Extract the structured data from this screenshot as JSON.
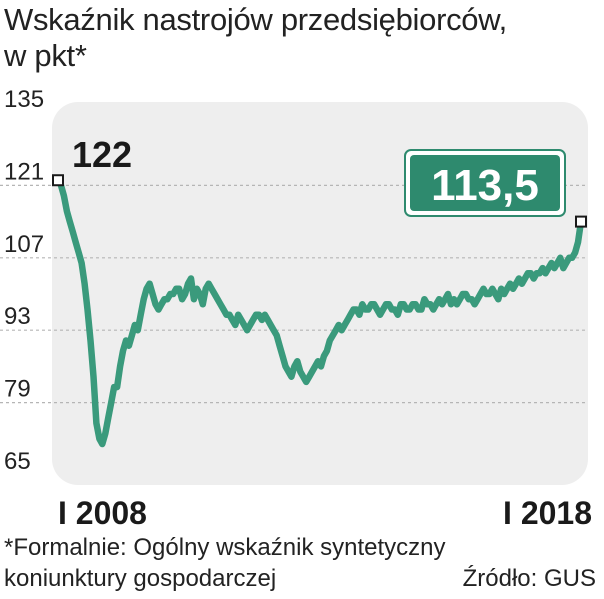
{
  "title_line1": "Wskaźnik nastrojów przedsiębiorców,",
  "title_line2": "w pkt*",
  "footnote_line1": "*Formalnie: Ogólny wskaźnik syntetyczny",
  "footnote_line2": "koniunktury gospodarczej",
  "source": "Źródło: GUS",
  "colors": {
    "line": "#3a9a7c",
    "label_box": "#2e8a6e",
    "plot_bg": "#eeeeee",
    "grid": "#b5b5b5"
  },
  "chart_data": {
    "type": "line",
    "title": "Wskaźnik nastrojów przedsiębiorców, w pkt*",
    "xlabel": "",
    "ylabel": "",
    "ylim": [
      65,
      135
    ],
    "yticks": [
      135,
      121,
      107,
      93,
      79,
      65
    ],
    "xtick_labels": [
      "I 2008",
      "I 2018"
    ],
    "x_range": [
      "I 2008",
      "I 2018"
    ],
    "grid": true,
    "annotations": {
      "start": "122",
      "end": "113,5"
    },
    "series": [
      {
        "values": [
          122,
          121,
          119,
          116,
          114,
          112,
          110,
          108,
          106,
          102,
          97,
          91,
          84,
          75,
          72,
          71,
          73,
          76,
          79,
          82,
          82,
          86,
          89,
          91,
          90,
          92,
          94,
          93,
          96,
          99,
          101,
          102,
          100,
          98,
          97,
          98,
          99,
          99,
          100,
          100,
          101,
          101,
          99,
          100,
          102,
          103,
          99,
          101,
          100,
          98,
          101,
          102,
          101,
          100,
          99,
          98,
          97,
          96,
          96,
          95,
          94,
          96,
          95,
          94,
          93,
          94,
          95,
          96,
          96,
          95,
          96,
          95,
          94,
          93,
          92,
          90,
          88,
          86,
          85,
          84,
          86,
          87,
          85,
          84,
          83,
          84,
          85,
          86,
          87,
          86,
          88,
          89,
          91,
          92,
          93,
          94,
          93,
          94,
          95,
          96,
          97,
          97,
          96,
          98,
          97,
          97,
          98,
          98,
          97,
          96,
          97,
          98,
          98,
          97,
          97,
          96,
          98,
          98,
          97,
          97,
          98,
          98,
          97,
          97,
          99,
          98,
          98,
          97,
          98,
          99,
          98,
          99,
          100,
          98,
          99,
          98,
          99,
          100,
          100,
          99,
          99,
          98,
          99,
          100,
          101,
          100,
          100,
          101,
          100,
          99,
          101,
          100,
          101,
          102,
          101,
          102,
          103,
          102,
          103,
          104,
          104,
          103,
          104,
          104,
          105,
          104,
          105,
          106,
          105,
          106,
          107,
          105,
          106,
          107,
          107,
          108,
          110,
          114
        ]
      }
    ]
  }
}
